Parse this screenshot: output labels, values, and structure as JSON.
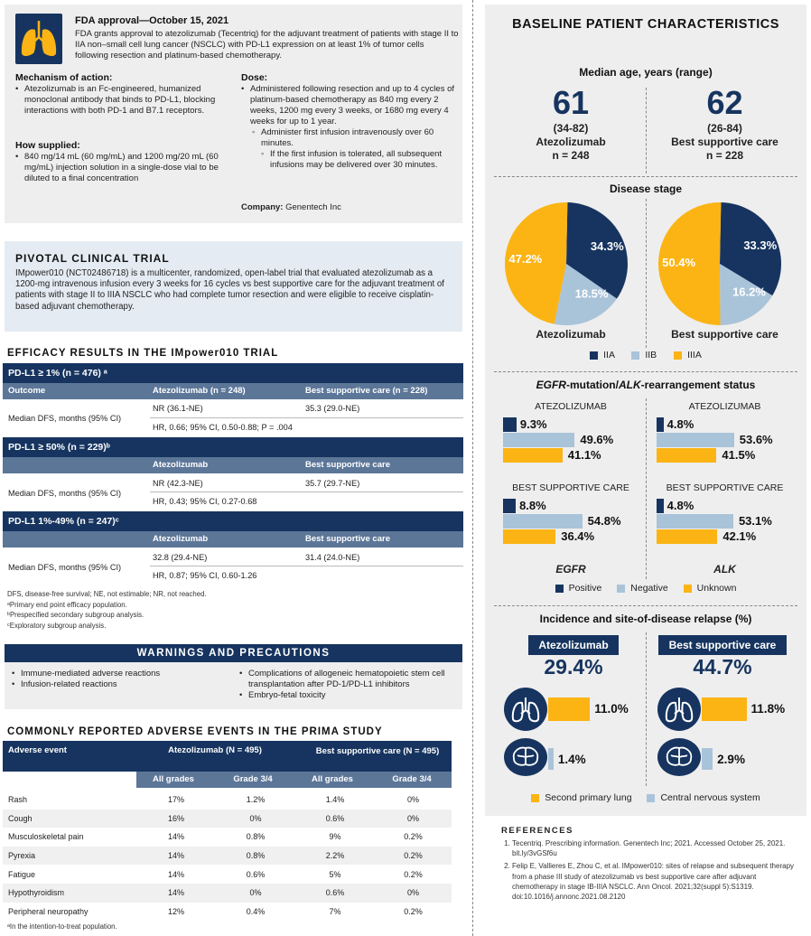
{
  "fda": {
    "title": "FDA approval—October 15, 2021",
    "intro": "FDA grants approval to atezolizumab (Tecentriq) for the adjuvant treatment of patients with stage II to IIA non–small cell lung cancer (NSCLC) with PD-L1 expression on at least 1% of tumor cells following resection and platinum-based chemotherapy.",
    "mechanism_label": "Mechanism of action:",
    "mechanism": "Atezolizumab is an Fc-engineered, humanized monoclonal antibody that binds to PD-L1, blocking interactions with both PD-1 and B7.1 receptors.",
    "supplied_label": "How supplied:",
    "supplied": "840 mg/14 mL (60 mg/mL) and 1200 mg/20 mL (60 mg/mL) injection solution in a single-dose vial to be diluted to a final concentration",
    "dose_label": "Dose:",
    "dose_1": "Administered following resection and up to 4 cycles of platinum-based chemotherapy as 840 mg every 2 weeks, 1200 mg every 3 weeks, or 1680 mg every 4 weeks for up to 1 year.",
    "dose_2": "Administer first infusion intravenously over 60 minutes.",
    "dose_3": "If the first infusion is tolerated, all subsequent infusions may be delivered over 30 minutes.",
    "company_label": "Company:",
    "company": "Genentech Inc",
    "icon": "lungs-icon"
  },
  "pivotal": {
    "title": "PIVOTAL CLINICAL TRIAL",
    "text": "IMpower010 (NCT02486718) is a multicenter, randomized, open-label trial that evaluated atezolizumab as a 1200-mg intravenous infusion every 3 weeks for 16 cycles vs best supportive care for the adjuvant treatment of patients with stage II to IIIA NSCLC who had complete tumor resection and were eligible to receive cisplatin-based adjuvant chemotherapy."
  },
  "efficacy": {
    "title": "EFFICACY RESULTS IN THE IMpower010 TRIAL",
    "groups": [
      {
        "header": "PD-L1 ≥ 1% (n = 476) ᵃ",
        "col0": "Outcome",
        "col1": "Atezolizumab (n = 248)",
        "col2": "Best supportive care (n = 228)",
        "outcome": "Median DFS, months (95% CI)",
        "atezo": "NR (36.1-NE)",
        "bsc": "35.3 (29.0-NE)",
        "hr": "HR, 0.66; 95% CI, 0.50-0.88; P = .004"
      },
      {
        "header": "PD-L1 ≥ 50% (n = 229)ᵇ",
        "col0": "",
        "col1": "Atezolizumab",
        "col2": "Best supportive care",
        "outcome": "Median DFS, months (95% CI)",
        "atezo": "NR (42.3-NE)",
        "bsc": "35.7 (29.7-NE)",
        "hr": "HR, 0.43; 95% CI, 0.27-0.68"
      },
      {
        "header": "PD-L1 1%-49% (n = 247)ᶜ",
        "col0": "",
        "col1": "Atezolizumab",
        "col2": "Best supportive care",
        "outcome": "Median DFS, months (95% CI)",
        "atezo": "32.8 (29.4-NE)",
        "bsc": "31.4 (24.0-NE)",
        "hr": "HR, 0.87; 95% CI, 0.60-1.26"
      }
    ],
    "footnotes": [
      "DFS, disease-free survival; NE, not estimable; NR, not reached.",
      "ᵃPrimary end point efficacy population.",
      "ᵇPrespecified secondary subgroup analysis.",
      "ᶜExploratory subgroup analysis."
    ]
  },
  "warnings": {
    "title": "WARNINGS AND PRECAUTIONS",
    "left": [
      "Immune-mediated adverse reactions",
      "Infusion-related reactions"
    ],
    "right": [
      "Complications of allogeneic hematopoietic stem cell transplantation after PD-1/PD-L1 inhibitors",
      "Embryo-fetal toxicity"
    ]
  },
  "adverse": {
    "title": "COMMONLY REPORTED ADVERSE EVENTS IN THE PRIMA STUDY",
    "h_event": "Adverse event",
    "h_atezo": "Atezolizumab (N = 495)",
    "h_bsc": "Best supportive care (N = 495)",
    "h_all": "All grades",
    "h_g34": "Grade 3/4",
    "rows": [
      {
        "event": "Rash",
        "a_all": "17%",
        "a_g": "1.2%",
        "b_all": "1.4%",
        "b_g": "0%"
      },
      {
        "event": "Cough",
        "a_all": "16%",
        "a_g": "0%",
        "b_all": "0.6%",
        "b_g": "0%"
      },
      {
        "event": "Musculoskeletal pain",
        "a_all": "14%",
        "a_g": "0.8%",
        "b_all": "9%",
        "b_g": "0.2%"
      },
      {
        "event": "Pyrexia",
        "a_all": "14%",
        "a_g": "0.8%",
        "b_all": "2.2%",
        "b_g": "0.2%"
      },
      {
        "event": "Fatigue",
        "a_all": "14%",
        "a_g": "0.6%",
        "b_all": "5%",
        "b_g": "0.2%"
      },
      {
        "event": "Hypothyroidism",
        "a_all": "14%",
        "a_g": "0%",
        "b_all": "0.6%",
        "b_g": "0%"
      },
      {
        "event": "Peripheral neuropathy",
        "a_all": "12%",
        "a_g": "0.4%",
        "b_all": "7%",
        "b_g": "0.2%"
      }
    ],
    "footnote": "ᵃIn the intention-to-treat population."
  },
  "baseline": {
    "title": "BASELINE PATIENT CHARACTERISTICS",
    "age_title": "Median age, years (range)",
    "atezo_age": "61",
    "atezo_range": "(34-82)",
    "atezo_label": "Atezolizumab",
    "atezo_n": "n = 248",
    "bsc_age": "62",
    "bsc_range": "(26-84)",
    "bsc_label": "Best supportive care",
    "bsc_n": "n = 228",
    "stage_title": "Disease stage",
    "legend": [
      "IIA",
      "IIB",
      "IIIA"
    ],
    "egfr_title_pre": "EGFR",
    "egfr_title_mid": "-mutation/",
    "egfr_title_alk": "ALK",
    "egfr_title_post": "-rearrangement status",
    "atezo_caps": "ATEZOLIZUMAB",
    "bsc_caps": "BEST SUPPORTIVE CARE",
    "egfr_label": "EGFR",
    "alk_label": "ALK",
    "mut_legend": [
      "Positive",
      "Negative",
      "Unknown"
    ],
    "relapse_title": "Incidence and site-of-disease relapse (%)",
    "atezo_relapse": "29.4%",
    "bsc_relapse": "44.7%",
    "relapse_legend": [
      "Second primary lung",
      "Central nervous system"
    ]
  },
  "colors": {
    "navy": "#16345f",
    "light_blue": "#a9c3d9",
    "gold": "#fbb414"
  },
  "chart_data": [
    {
      "type": "pie",
      "categories": [
        "IIA",
        "IIB",
        "IIIA"
      ],
      "values": [
        34.3,
        18.5,
        47.2
      ],
      "labels": [
        "34.3%",
        "18.5%",
        "47.2%"
      ],
      "xlabel": "Atezolizumab"
    },
    {
      "type": "pie",
      "categories": [
        "IIA",
        "IIB",
        "IIIA"
      ],
      "values": [
        33.3,
        16.2,
        50.4
      ],
      "labels": [
        "33.3%",
        "16.2%",
        "50.4%"
      ],
      "xlabel": "Best supportive care"
    },
    {
      "type": "bar",
      "title": "ATEZOLIZUMAB",
      "xlabel": "EGFR",
      "categories": [
        "Positive",
        "Negative",
        "Unknown"
      ],
      "values": [
        9.3,
        49.6,
        41.1
      ],
      "labels": [
        "9.3%",
        "49.6%",
        "41.1%"
      ]
    },
    {
      "type": "bar",
      "title": "ATEZOLIZUMAB",
      "xlabel": "ALK",
      "categories": [
        "Positive",
        "Negative",
        "Unknown"
      ],
      "values": [
        4.8,
        53.6,
        41.5
      ],
      "labels": [
        "4.8%",
        "53.6%",
        "41.5%"
      ]
    },
    {
      "type": "bar",
      "title": "BEST SUPPORTIVE CARE",
      "xlabel": "EGFR",
      "categories": [
        "Positive",
        "Negative",
        "Unknown"
      ],
      "values": [
        8.8,
        54.8,
        36.4
      ],
      "labels": [
        "8.8%",
        "54.8%",
        "36.4%"
      ]
    },
    {
      "type": "bar",
      "title": "BEST SUPPORTIVE CARE",
      "xlabel": "ALK",
      "categories": [
        "Positive",
        "Negative",
        "Unknown"
      ],
      "values": [
        4.8,
        53.1,
        42.1
      ],
      "labels": [
        "4.8%",
        "53.1%",
        "42.1%"
      ]
    },
    {
      "type": "bar",
      "title": "Atezolizumab",
      "categories": [
        "Second primary lung",
        "Central nervous system"
      ],
      "values": [
        11.0,
        1.4
      ],
      "labels": [
        "11.0%",
        "1.4%"
      ]
    },
    {
      "type": "bar",
      "title": "Best supportive care",
      "categories": [
        "Second primary lung",
        "Central nervous system"
      ],
      "values": [
        11.8,
        2.9
      ],
      "labels": [
        "11.8%",
        "2.9%"
      ]
    }
  ],
  "references": {
    "title": "REFERENCES",
    "items": [
      "Tecentriq. Prescribing information. Genentech Inc; 2021. Accessed October 25, 2021. bit.ly/3vGSf6u",
      "Felip E, Vallieres E, Zhou C, et al. IMpower010: sites of relapse and subsequent therapy from a phase III study of atezolizumab vs best supportive care after adjuvant chemotherapy in stage IB-IIIA NSCLC. Ann Oncol. 2021;32(suppl 5):S1319. doi:10.1016/j.annonc.2021.08.2120"
    ]
  }
}
